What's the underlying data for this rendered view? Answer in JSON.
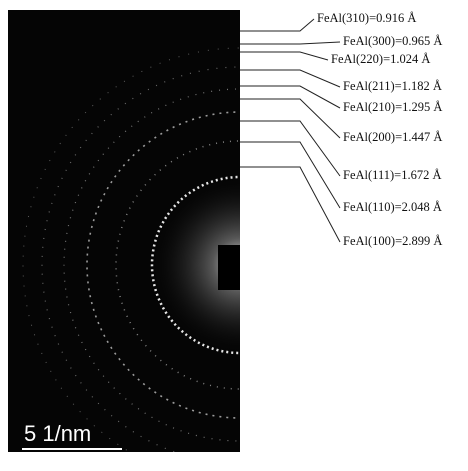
{
  "scale_bar": "5 1/nm",
  "labels": [
    "FeAl(310)=0.916 Å",
    "FeAl(300)=0.965 Å",
    "FeAl(220)=1.024 Å",
    "FeAl(211)=1.182 Å",
    "FeAl(210)=1.295 Å",
    "FeAl(200)=1.447 Å",
    "FeAl(111)=1.672 Å",
    "FeAl(110)=2.048 Å",
    "FeAl(100)=2.899 Å"
  ]
}
